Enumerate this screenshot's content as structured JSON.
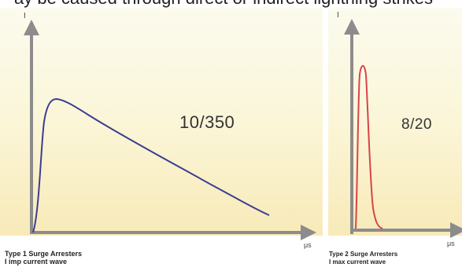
{
  "top_text": "ay be caused through direct or indirect lightning strikes",
  "panel1": {
    "y_axis_label": "I",
    "x_axis_label": "μs",
    "waveform_label": "10/350",
    "caption_line1": "Type 1 Surge Arresters",
    "caption_line2": "I imp current wave",
    "curve_color": "#3a3f8f"
  },
  "panel2": {
    "y_axis_label": "I",
    "x_axis_label": "μs",
    "waveform_label": "8/20",
    "caption_line1": "Type 2 Surge Arresters",
    "caption_line2": "I max current wave",
    "curve_color": "#d9434b"
  },
  "axis_color": "#8c8c8c"
}
